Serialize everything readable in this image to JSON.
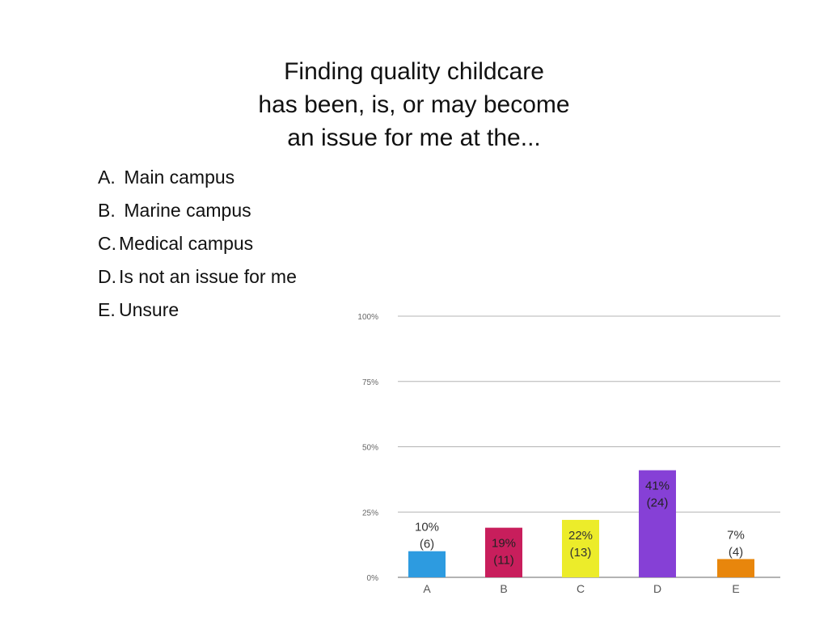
{
  "slide": {
    "title_lines": [
      "Finding quality childcare",
      "has been, is, or may become",
      "an issue for me at the..."
    ],
    "options": [
      {
        "key": "A.",
        "text": " Main campus"
      },
      {
        "key": "B.",
        "text": " Marine campus"
      },
      {
        "key": "C.",
        "text": "Medical campus"
      },
      {
        "key": "D.",
        "text": "Is not an issue for me"
      },
      {
        "key": "E.",
        "text": "Unsure"
      }
    ]
  },
  "chart_data": {
    "type": "bar",
    "categories": [
      "A",
      "B",
      "C",
      "D",
      "E"
    ],
    "values": [
      10,
      19,
      22,
      41,
      7
    ],
    "counts": [
      6,
      11,
      13,
      24,
      4
    ],
    "value_labels": [
      "10%",
      "19%",
      "22%",
      "41%",
      "7%"
    ],
    "count_labels": [
      "(6)",
      "(11)",
      "(13)",
      "(24)",
      "(4)"
    ],
    "colors": [
      "#2d9be0",
      "#c81e5c",
      "#ecec2a",
      "#8640d6",
      "#e8860c"
    ],
    "ylim": [
      0,
      100
    ],
    "yticks": [
      0,
      25,
      50,
      75,
      100
    ],
    "ytick_labels": [
      "0%",
      "25%",
      "50%",
      "75%",
      "100%"
    ],
    "grid": true,
    "title": "",
    "xlabel": "",
    "ylabel": ""
  }
}
